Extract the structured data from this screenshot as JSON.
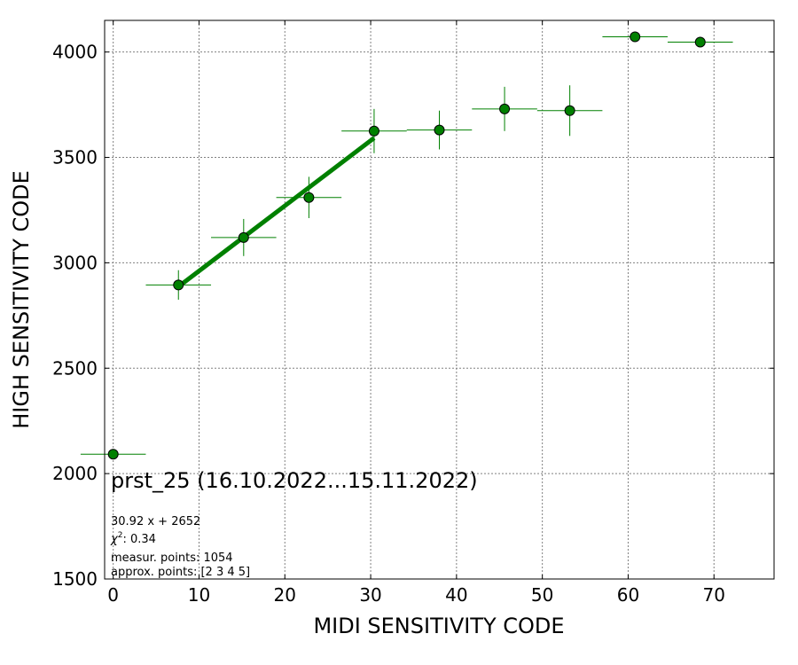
{
  "chart_data": {
    "type": "scatter",
    "xlabel": "MIDI SENSITIVITY CODE",
    "ylabel": "HIGH SENSITIVITY CODE",
    "xlim": [
      -1,
      77
    ],
    "ylim": [
      1500,
      4150
    ],
    "x_ticks": [
      0,
      10,
      20,
      30,
      40,
      50,
      60,
      70
    ],
    "y_ticks": [
      1500,
      2000,
      2500,
      3000,
      3500,
      4000
    ],
    "grid": true,
    "marker_color": "#008000",
    "marker_edge_color": "#000000",
    "errorbar_color": "#008000",
    "fit_color": "#008000",
    "points": [
      {
        "x": 0.0,
        "y": 2092,
        "xerr": 3.8,
        "yerr": 0
      },
      {
        "x": 7.6,
        "y": 2895,
        "xerr": 3.8,
        "yerr": 70
      },
      {
        "x": 15.2,
        "y": 3120,
        "xerr": 3.8,
        "yerr": 88
      },
      {
        "x": 22.8,
        "y": 3310,
        "xerr": 3.8,
        "yerr": 98
      },
      {
        "x": 30.4,
        "y": 3625,
        "xerr": 3.8,
        "yerr": 105
      },
      {
        "x": 38.0,
        "y": 3630,
        "xerr": 3.8,
        "yerr": 92
      },
      {
        "x": 45.6,
        "y": 3730,
        "xerr": 3.8,
        "yerr": 105
      },
      {
        "x": 53.2,
        "y": 3722,
        "xerr": 3.8,
        "yerr": 120
      },
      {
        "x": 60.8,
        "y": 4072,
        "xerr": 3.8,
        "yerr": 0
      },
      {
        "x": 68.4,
        "y": 4047,
        "xerr": 3.8,
        "yerr": 22
      }
    ],
    "fit": {
      "slope": 30.92,
      "intercept": 2652,
      "x_range": [
        7.6,
        30.4
      ]
    },
    "annotations": {
      "title": "prst_25 (16.10.2022...15.11.2022)",
      "equation": "30.92 x + 2652",
      "chi2_label": "χ",
      "chi2_sup": "2",
      "chi2_value": ": 0.34",
      "measur_points": "measur. points: 1054",
      "approx_points": "approx. points: [2 3 4 5]"
    }
  }
}
